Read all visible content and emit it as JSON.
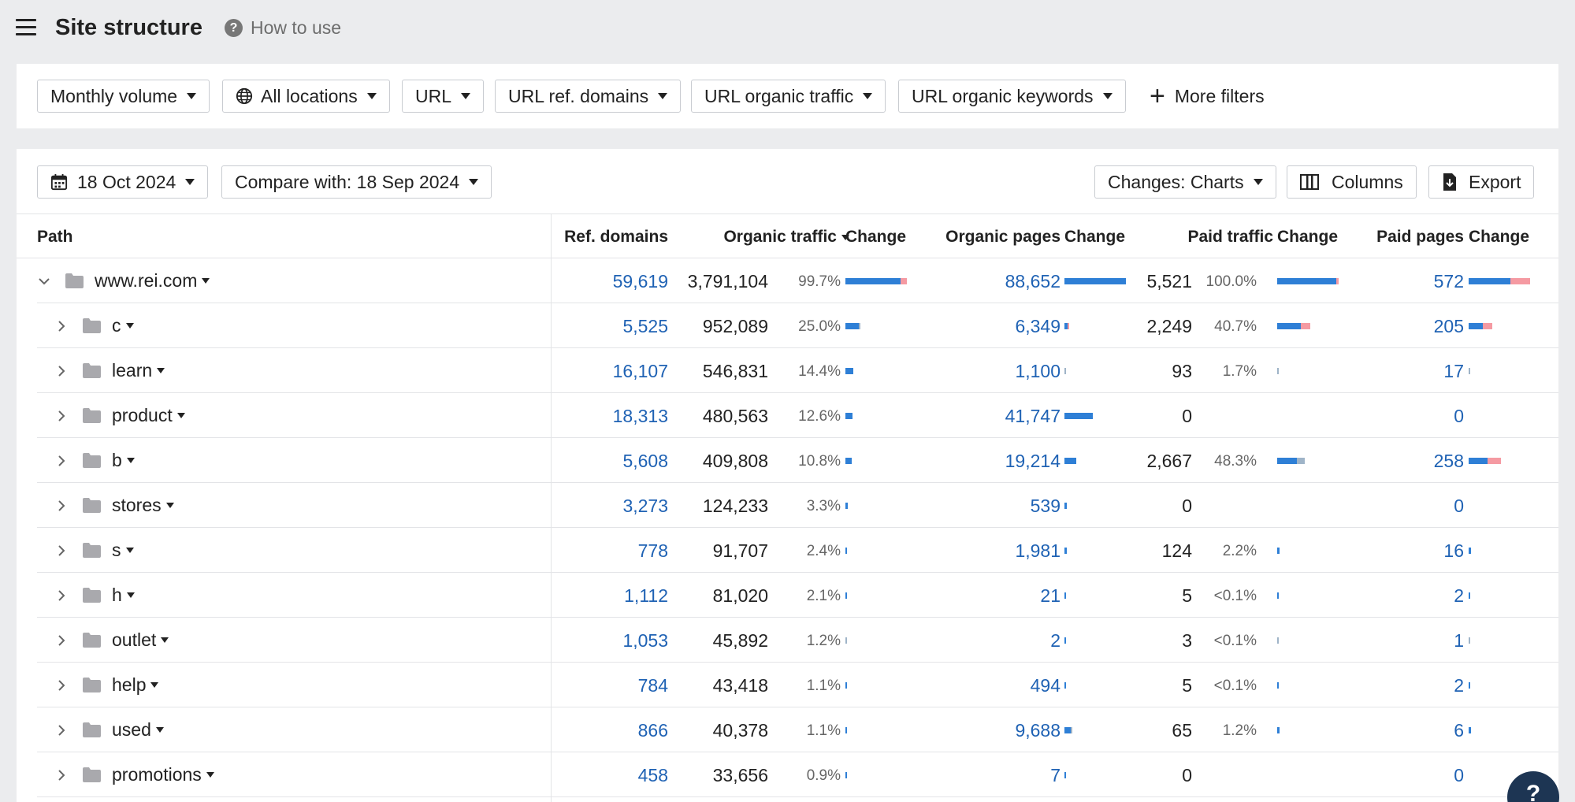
{
  "header": {
    "title": "Site structure",
    "how_to": "How to use"
  },
  "filters": {
    "monthly_volume": "Monthly volume",
    "locations": "All locations",
    "url": "URL",
    "url_ref_domains": "URL ref. domains",
    "url_organic_traffic": "URL organic traffic",
    "url_organic_keywords": "URL organic keywords",
    "more_filters": "More filters"
  },
  "toolbar": {
    "date": "18 Oct 2024",
    "compare": "Compare with: 18 Sep 2024",
    "changes": "Changes: Charts",
    "columns": "Columns",
    "export": "Export"
  },
  "table": {
    "columns": {
      "path": "Path",
      "ref_domains": "Ref. domains",
      "organic_traffic": "Organic traffic",
      "change1": "Change",
      "organic_pages": "Organic pages",
      "change2": "Change",
      "paid_traffic": "Paid traffic",
      "change3": "Change",
      "paid_pages": "Paid pages",
      "change4": "Change"
    },
    "rows": [
      {
        "path": "www.rei.com",
        "ref": "59,619",
        "ot": "3,791,104",
        "otp": "99.7%",
        "op": "88,652",
        "pt": "5,521",
        "ptp": "100.0%",
        "pp": "572"
      },
      {
        "path": "c",
        "ref": "5,525",
        "ot": "952,089",
        "otp": "25.0%",
        "op": "6,349",
        "pt": "2,249",
        "ptp": "40.7%",
        "pp": "205"
      },
      {
        "path": "learn",
        "ref": "16,107",
        "ot": "546,831",
        "otp": "14.4%",
        "op": "1,100",
        "pt": "93",
        "ptp": "1.7%",
        "pp": "17"
      },
      {
        "path": "product",
        "ref": "18,313",
        "ot": "480,563",
        "otp": "12.6%",
        "op": "41,747",
        "pt": "0",
        "ptp": "",
        "pp": "0"
      },
      {
        "path": "b",
        "ref": "5,608",
        "ot": "409,808",
        "otp": "10.8%",
        "op": "19,214",
        "pt": "2,667",
        "ptp": "48.3%",
        "pp": "258"
      },
      {
        "path": "stores",
        "ref": "3,273",
        "ot": "124,233",
        "otp": "3.3%",
        "op": "539",
        "pt": "0",
        "ptp": "",
        "pp": "0"
      },
      {
        "path": "s",
        "ref": "778",
        "ot": "91,707",
        "otp": "2.4%",
        "op": "1,981",
        "pt": "124",
        "ptp": "2.2%",
        "pp": "16"
      },
      {
        "path": "h",
        "ref": "1,112",
        "ot": "81,020",
        "otp": "2.1%",
        "op": "21",
        "pt": "5",
        "ptp": "<0.1%",
        "pp": "2"
      },
      {
        "path": "outlet",
        "ref": "1,053",
        "ot": "45,892",
        "otp": "1.2%",
        "op": "2",
        "pt": "3",
        "ptp": "<0.1%",
        "pp": "1"
      },
      {
        "path": "help",
        "ref": "784",
        "ot": "43,418",
        "otp": "1.1%",
        "op": "494",
        "pt": "5",
        "ptp": "<0.1%",
        "pp": "2"
      },
      {
        "path": "used",
        "ref": "866",
        "ot": "40,378",
        "otp": "1.1%",
        "op": "9,688",
        "pt": "65",
        "ptp": "1.2%",
        "pp": "6"
      },
      {
        "path": "promotions",
        "ref": "458",
        "ot": "33,656",
        "otp": "0.9%",
        "op": "7",
        "pt": "0",
        "ptp": "",
        "pp": "0"
      }
    ]
  },
  "help_bubble": "?",
  "colors": {
    "link": "#1f62b4",
    "bar_blue": "#2e7fd6",
    "bar_red": "#f59aa2",
    "bar_gray": "#9fb4c8"
  }
}
